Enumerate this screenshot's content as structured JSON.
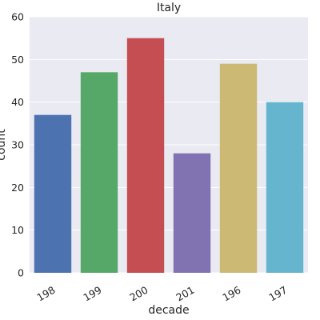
{
  "chart_data": {
    "type": "bar",
    "title": "Italy",
    "xlabel": "decade",
    "ylabel": "count",
    "categories": [
      "198",
      "199",
      "200",
      "201",
      "196",
      "197"
    ],
    "values": [
      37,
      47,
      55,
      28,
      49,
      40
    ],
    "colors": [
      "#4c72b0",
      "#55a868",
      "#c44e52",
      "#8172b2",
      "#ccb974",
      "#64b5cd"
    ],
    "ylim": [
      0,
      60
    ],
    "yticks": [
      "0",
      "10",
      "20",
      "30",
      "40",
      "50",
      "60"
    ],
    "grid": true,
    "background": "#eaeaf2"
  }
}
